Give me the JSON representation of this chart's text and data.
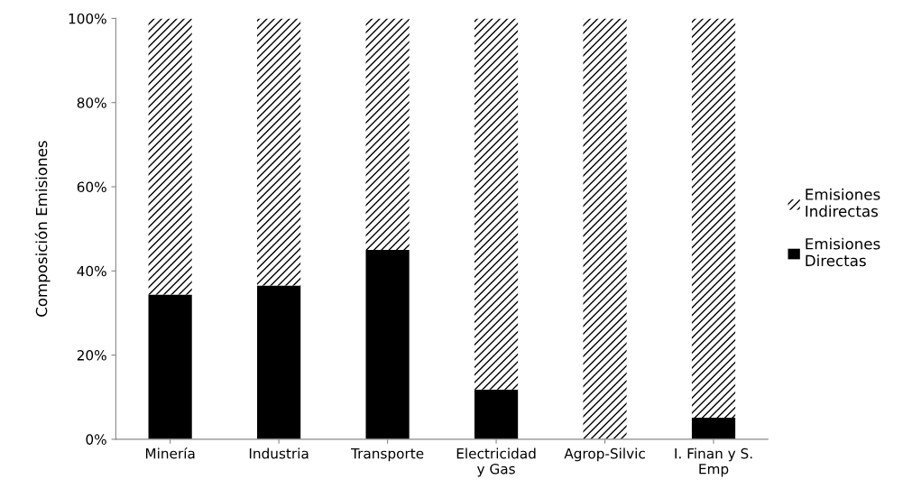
{
  "chart_data": {
    "type": "bar",
    "stacked": true,
    "ylabel": "Composición Emisiones",
    "categories": [
      "Minería",
      "Industria",
      "Transporte",
      "Electricidad\ny Gas",
      "Agrop-Silvic",
      "I. Finan y S.\nEmp"
    ],
    "series": [
      {
        "name": "Emisiones\nDirectas",
        "color": "#000000",
        "values": [
          34.4,
          36.5,
          45.0,
          11.8,
          0,
          5.1
        ]
      },
      {
        "name": "Emisiones\nIndirectas",
        "color": "#000000",
        "values": [
          65.6,
          63.5,
          55.0,
          88.2,
          100,
          94.9
        ]
      }
    ],
    "ylim": [
      0,
      100
    ],
    "yticks": [
      {
        "value": 0,
        "label": "0%"
      },
      {
        "value": 20,
        "label": "20%"
      },
      {
        "value": 40,
        "label": "40%"
      },
      {
        "value": 60,
        "label": "60%"
      },
      {
        "value": 80,
        "label": "80%"
      },
      {
        "value": 100,
        "label": "100%"
      }
    ],
    "grid": false,
    "legend": "right"
  }
}
